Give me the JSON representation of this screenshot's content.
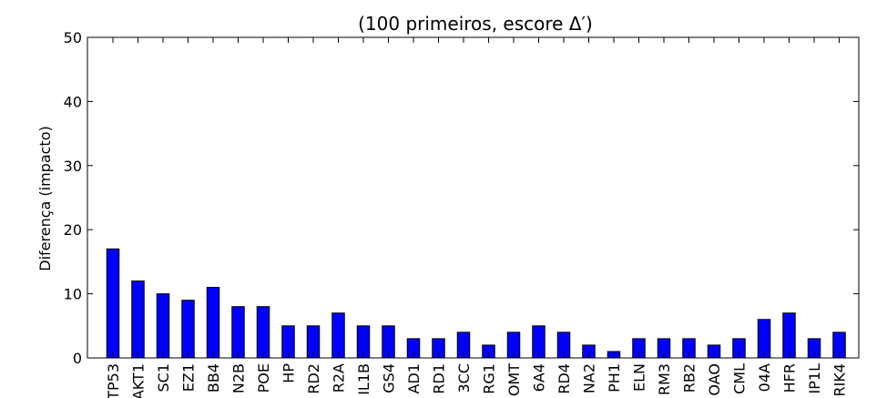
{
  "chart_data": {
    "type": "bar",
    "title": "(100 primeiros, escore Δ′)",
    "xlabel": "",
    "ylabel": "Diferença (impacto)",
    "ylim": [
      0,
      50
    ],
    "yticks": [
      0,
      10,
      20,
      30,
      40,
      50
    ],
    "grid": false,
    "categories": [
      "TP53",
      "AKT1",
      "SC1",
      "EZ1",
      "BB4",
      "N2B",
      "POE",
      "HP",
      "RD2",
      "R2A",
      "IL1B",
      "GS4",
      "AD1",
      "RD1",
      "3CC",
      "RG1",
      "OMT",
      "6A4",
      "RD4",
      "NA2",
      "PH1",
      "ELN",
      "RM3",
      "RB2",
      "OAO",
      "CML",
      "04A",
      "HFR",
      "IP1L",
      "RIK4"
    ],
    "values": [
      17,
      12,
      10,
      9,
      11,
      8,
      8,
      5,
      5,
      7,
      5,
      5,
      3,
      3,
      4,
      2,
      4,
      5,
      4,
      2,
      1,
      3,
      3,
      3,
      2,
      3,
      6,
      7,
      3,
      4
    ],
    "colors": {
      "bar": "#0000ff",
      "edge": "#000000"
    }
  }
}
